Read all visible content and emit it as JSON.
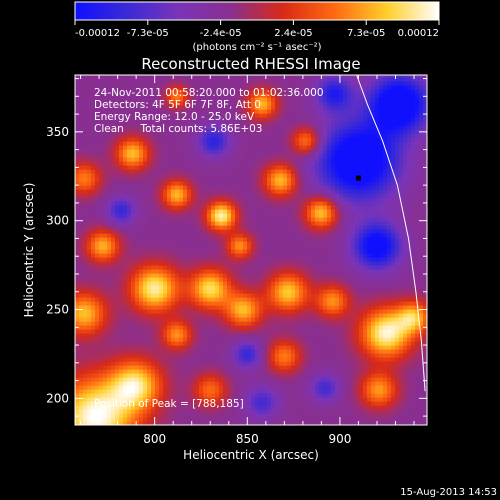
{
  "chart_data": {
    "type": "heatmap",
    "title": "Reconstructed RHESSI Image",
    "xlabel": "Heliocentric X (arcsec)",
    "ylabel": "Heliocentric Y (arcsec)",
    "xlim": [
      757,
      947
    ],
    "ylim": [
      185,
      382
    ],
    "xticks": [
      800,
      850,
      900
    ],
    "yticks": [
      200,
      250,
      300,
      350
    ],
    "colorbar": {
      "min": -0.00012,
      "max": 0.00012,
      "tick_labels": [
        "-0.00012",
        "-7.3e-05",
        "-2.4e-05",
        "2.4e-05",
        "7.3e-05",
        "0.00012"
      ],
      "unit_label": "(photons cm⁻² s⁻¹ asec⁻²)",
      "colors": [
        "#1010ff",
        "#3a2ad6",
        "#7a34b8",
        "#8a2f8f",
        "#d92a16",
        "#ff6a10",
        "#ffcf2a",
        "#ffffff"
      ]
    },
    "annotations": {
      "line1": "24-Nov-2011 00:58:20.000 to 01:02:36.000",
      "line2": "Detectors: 4F 5F 6F 7F 8F, Att 0",
      "line3": "Energy Range: 12.0 - 25.0 keV",
      "line4": "Clean     Total counts: 5.86E+03",
      "peak": "Position of Peak = [788,185]"
    },
    "limb_curve": [
      [
        909,
        382
      ],
      [
        915,
        365
      ],
      [
        923,
        345
      ],
      [
        931,
        320
      ],
      [
        937,
        290
      ],
      [
        941,
        260
      ],
      [
        944,
        232
      ],
      [
        946,
        204
      ]
    ],
    "peak_position": [
      788,
      185
    ],
    "marker": [
      910,
      324
    ],
    "sources": [
      {
        "x": 768,
        "y": 190,
        "r": 22,
        "v": 1.0
      },
      {
        "x": 790,
        "y": 208,
        "r": 14,
        "v": 0.78
      },
      {
        "x": 762,
        "y": 248,
        "r": 12,
        "v": 0.72
      },
      {
        "x": 800,
        "y": 262,
        "r": 13,
        "v": 0.9
      },
      {
        "x": 830,
        "y": 262,
        "r": 11,
        "v": 0.82
      },
      {
        "x": 848,
        "y": 250,
        "r": 10,
        "v": 0.7
      },
      {
        "x": 872,
        "y": 260,
        "r": 11,
        "v": 0.75
      },
      {
        "x": 896,
        "y": 255,
        "r": 9,
        "v": 0.6
      },
      {
        "x": 925,
        "y": 237,
        "r": 14,
        "v": 0.95
      },
      {
        "x": 940,
        "y": 246,
        "r": 9,
        "v": 0.65
      },
      {
        "x": 921,
        "y": 205,
        "r": 10,
        "v": 0.62
      },
      {
        "x": 836,
        "y": 303,
        "r": 8,
        "v": 0.92
      },
      {
        "x": 812,
        "y": 315,
        "r": 8,
        "v": 0.7
      },
      {
        "x": 788,
        "y": 338,
        "r": 9,
        "v": 0.72
      },
      {
        "x": 762,
        "y": 324,
        "r": 9,
        "v": 0.55
      },
      {
        "x": 868,
        "y": 323,
        "r": 9,
        "v": 0.72
      },
      {
        "x": 890,
        "y": 305,
        "r": 9,
        "v": 0.78
      },
      {
        "x": 858,
        "y": 366,
        "r": 8,
        "v": 0.7
      },
      {
        "x": 882,
        "y": 345,
        "r": 8,
        "v": 0.62
      },
      {
        "x": 812,
        "y": 370,
        "r": 6,
        "v": 0.55
      },
      {
        "x": 772,
        "y": 286,
        "r": 9,
        "v": 0.68
      },
      {
        "x": 846,
        "y": 286,
        "r": 7,
        "v": 0.6
      },
      {
        "x": 870,
        "y": 224,
        "r": 9,
        "v": 0.55
      },
      {
        "x": 812,
        "y": 236,
        "r": 8,
        "v": 0.6
      },
      {
        "x": 830,
        "y": 205,
        "r": 9,
        "v": 0.5
      },
      {
        "x": 910,
        "y": 334,
        "r": 22,
        "v": -1.0
      },
      {
        "x": 932,
        "y": 366,
        "r": 16,
        "v": -1.0
      },
      {
        "x": 920,
        "y": 286,
        "r": 13,
        "v": -0.85
      },
      {
        "x": 897,
        "y": 372,
        "r": 10,
        "v": -0.6
      },
      {
        "x": 832,
        "y": 345,
        "r": 9,
        "v": -0.55
      },
      {
        "x": 850,
        "y": 225,
        "r": 8,
        "v": -0.5
      },
      {
        "x": 782,
        "y": 306,
        "r": 8,
        "v": -0.5
      },
      {
        "x": 858,
        "y": 198,
        "r": 9,
        "v": -0.45
      },
      {
        "x": 892,
        "y": 206,
        "r": 8,
        "v": -0.45
      }
    ],
    "footer_date": "15-Aug-2013 14:53"
  }
}
